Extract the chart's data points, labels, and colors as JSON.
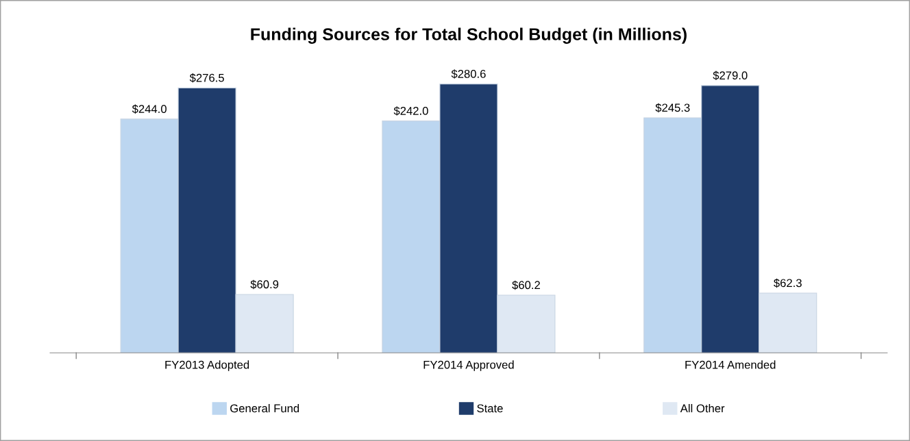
{
  "chart_data": {
    "type": "bar",
    "title": "Funding Sources for Total School Budget (in Millions)",
    "categories": [
      "FY2013 Adopted",
      "FY2014 Approved",
      "FY2014 Amended"
    ],
    "series": [
      {
        "name": "General Fund",
        "color": "#bcd6f0",
        "values": [
          244.0,
          242.0,
          245.3
        ],
        "value_labels": [
          "$244.0",
          "$242.0",
          "$245.3"
        ]
      },
      {
        "name": "State",
        "color": "#1f3c6b",
        "values": [
          276.5,
          280.6,
          279.0
        ],
        "value_labels": [
          "$276.5",
          "$280.6",
          "$279.0"
        ]
      },
      {
        "name": "All Other",
        "color": "#dfe8f3",
        "values": [
          60.9,
          60.2,
          62.3
        ],
        "value_labels": [
          "$60.9",
          "$60.2",
          "$62.3"
        ]
      }
    ],
    "legend": "bottom",
    "grid": false
  }
}
